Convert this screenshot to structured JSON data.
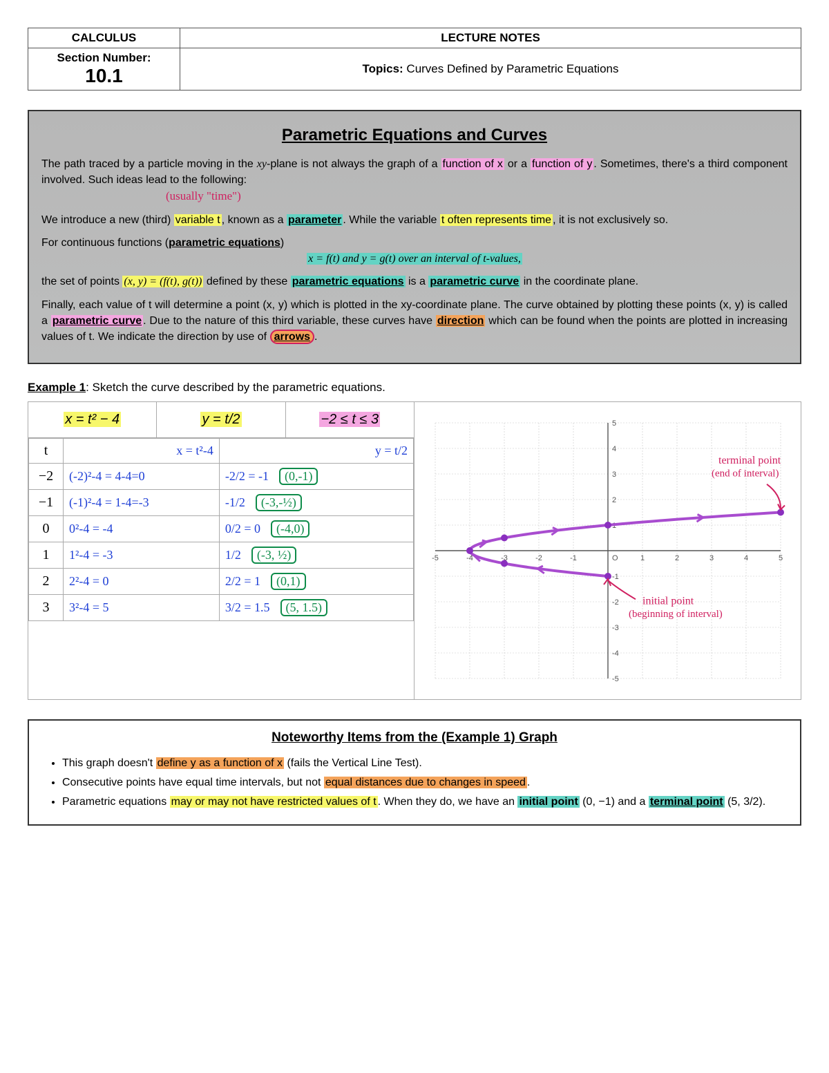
{
  "header": {
    "course": "CALCULUS",
    "title": "LECTURE NOTES",
    "section_label": "Section Number:",
    "section_num": "10.1",
    "topics_label": "Topics:",
    "topics": " Curves Defined by Parametric Equations"
  },
  "graybox": {
    "heading": "Parametric Equations and Curves",
    "p1a": "The path traced by a particle moving in the ",
    "p1b": "xy",
    "p1c": "-plane is not always the graph of a ",
    "p1d": "function of x",
    "p1e": " or a ",
    "p1f": "function of y",
    "p1g": ". Sometimes, there's a third component involved. Such ideas lead to the following:",
    "handnote1": "(usually \"time\")",
    "p2a": "We introduce a new (third) ",
    "p2b": "variable t",
    "p2c": ", known as a ",
    "p2d": "parameter",
    "p2e": ". While the variable ",
    "p2f": "t often represents time",
    "p2g": ", it is not exclusively so.",
    "p3a": "For continuous functions (",
    "p3b": "parametric equations",
    "p3c": ")",
    "p3math": "x = f(t)  and  y = g(t)  over an interval of t-values,",
    "p4a": "the set of points ",
    "p4b": "(x, y) = (f(t), g(t))",
    "p4c": " defined by these ",
    "p4d": "parametric equations",
    "p4e": " is a ",
    "p4f": "parametric curve",
    "p4g": " in the coordinate plane.",
    "p5a": "Finally, each value of t will determine a point (x, y) which is plotted in the xy-coordinate plane. The curve obtained by plotting these points (x, y) is called a ",
    "p5b": "parametric curve",
    "p5c": ". Due to the nature of this third variable, these curves have ",
    "p5d": "direction",
    "p5e": " which can be found when the points are plotted in increasing values of t. We indicate the direction by use of ",
    "p5f": "arrows",
    "p5g": "."
  },
  "example": {
    "label": "Example 1",
    "prompt": ": Sketch the curve described by the parametric equations.",
    "eq1": "x = t² − 4",
    "eq2": "y = t/2",
    "eq3": "−2 ≤ t ≤ 3",
    "head_t": "t",
    "head_x": "x = t²-4",
    "head_y": "y = t/2",
    "rows": [
      {
        "t": "−2",
        "x": "(-2)²-4 = 4-4=0",
        "y": "-2/2 = -1",
        "pt": "(0,-1)"
      },
      {
        "t": "−1",
        "x": "(-1)²-4 = 1-4=-3",
        "y": "-1/2",
        "pt": "(-3,-½)"
      },
      {
        "t": "0",
        "x": "0²-4 = -4",
        "y": "0/2 = 0",
        "pt": "(-4,0)"
      },
      {
        "t": "1",
        "x": "1²-4 = -3",
        "y": "1/2",
        "pt": "(-3, ½)"
      },
      {
        "t": "2",
        "x": "2²-4 = 0",
        "y": "2/2 = 1",
        "pt": "(0,1)"
      },
      {
        "t": "3",
        "x": "3²-4 = 5",
        "y": "3/2 = 1.5",
        "pt": "(5, 1.5)"
      }
    ]
  },
  "graph": {
    "xlim": [
      -5,
      5
    ],
    "ylim": [
      -5,
      5
    ],
    "points": [
      [
        0,
        -1
      ],
      [
        -3,
        -0.5
      ],
      [
        -4,
        0
      ],
      [
        -3,
        0.5
      ],
      [
        0,
        1
      ],
      [
        5,
        1.5
      ]
    ],
    "curve_color": "#a84ccf",
    "point_color": "#8a2fbf",
    "grid_color": "#c8c8c8",
    "axis_color": "#555555",
    "ann_color": "#d02060",
    "terminal_label": "terminal point\n(end of interval)",
    "initial_label": "initial point\n(beginning of interval)"
  },
  "noteworthy": {
    "heading": "Noteworthy Items from the (Example 1) Graph",
    "i1a": "This graph doesn't ",
    "i1b": "define y as a function of x",
    "i1c": " (fails the Vertical Line Test).",
    "i2a": "Consecutive points have equal time intervals, but not ",
    "i2b": "equal distances due to changes in speed",
    "i2c": ".",
    "i3a": "Parametric equations ",
    "i3b": "may or may not have restricted values of t",
    "i3c": ". When they do, we have an ",
    "i3d": "initial point",
    "i3e": " (0, −1) and a ",
    "i3f": "terminal point",
    "i3g": " (5, 3/2)."
  }
}
